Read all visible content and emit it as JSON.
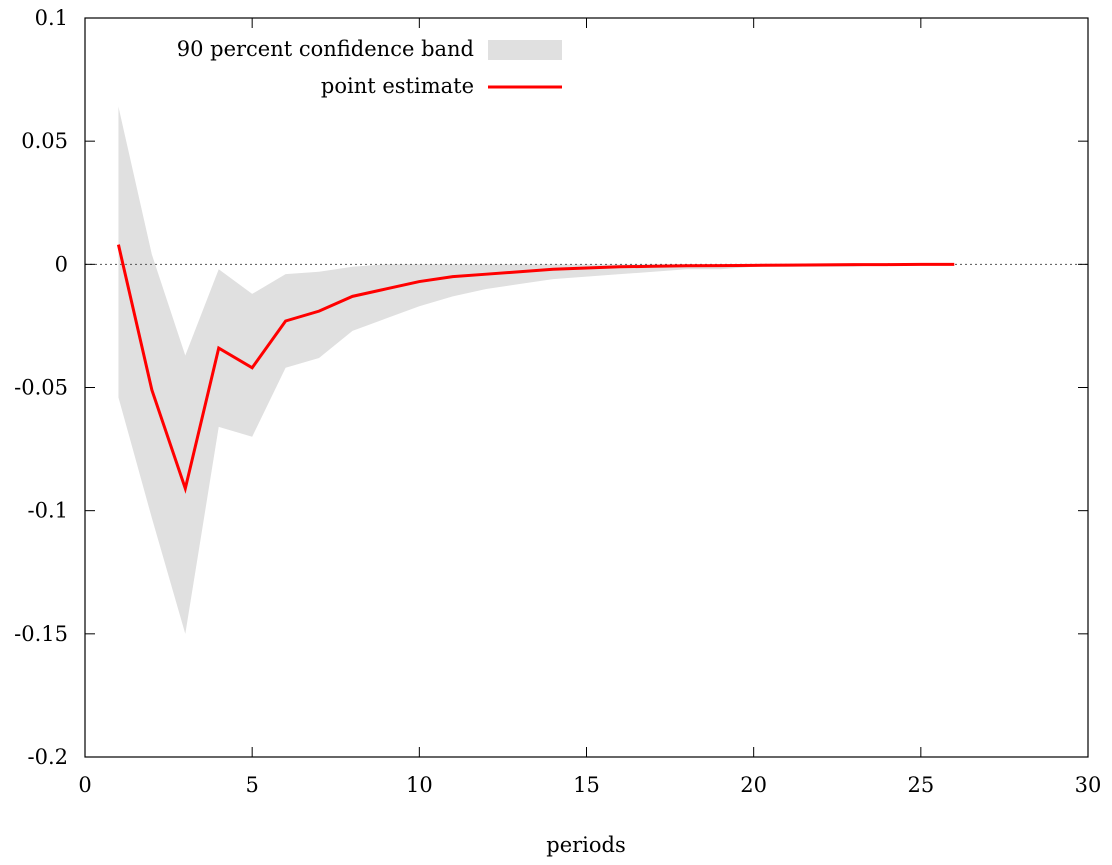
{
  "chart_data": {
    "type": "line",
    "title": "",
    "xlabel": "periods",
    "ylabel": "",
    "xlim": [
      0,
      30
    ],
    "ylim": [
      -0.2,
      0.1
    ],
    "xticks": [
      0,
      5,
      10,
      15,
      20,
      25,
      30
    ],
    "yticks": [
      -0.2,
      -0.15,
      -0.1,
      -0.05,
      0,
      0.05,
      0.1
    ],
    "xtick_labels": [
      "0",
      "5",
      "10",
      "15",
      "20",
      "25",
      "30"
    ],
    "ytick_labels": [
      "-0.2",
      "-0.15",
      "-0.1",
      "-0.05",
      "0",
      "0.05",
      "0.1"
    ],
    "grid": false,
    "legend_position": "top-left",
    "zero_line": true,
    "x": [
      1,
      2,
      3,
      4,
      5,
      6,
      7,
      8,
      9,
      10,
      11,
      12,
      13,
      14,
      15,
      16,
      17,
      18,
      19,
      20,
      21,
      22,
      23,
      24,
      25,
      26
    ],
    "series": [
      {
        "name": "90 percent confidence band",
        "kind": "band",
        "color": "#e0e0e0",
        "lower": [
          -0.054,
          -0.103,
          -0.15,
          -0.066,
          -0.07,
          -0.042,
          -0.038,
          -0.027,
          -0.022,
          -0.017,
          -0.013,
          -0.01,
          -0.008,
          -0.006,
          -0.005,
          -0.004,
          -0.003,
          -0.002,
          -0.002,
          -0.001,
          -0.001,
          -0.001,
          -0.001,
          0.0,
          0.0,
          0.0
        ],
        "upper": [
          0.064,
          0.004,
          -0.037,
          -0.002,
          -0.012,
          -0.004,
          -0.003,
          -0.001,
          0.0,
          0.0,
          0.0,
          0.0,
          0.0,
          0.0,
          0.0,
          0.0,
          0.0,
          0.0,
          0.0,
          0.0,
          0.0,
          0.0,
          0.0,
          0.0,
          0.0,
          0.0
        ]
      },
      {
        "name": "point estimate",
        "kind": "line",
        "color": "#ff0000",
        "values": [
          0.008,
          -0.051,
          -0.091,
          -0.034,
          -0.042,
          -0.023,
          -0.019,
          -0.013,
          -0.01,
          -0.007,
          -0.005,
          -0.004,
          -0.003,
          -0.002,
          -0.0015,
          -0.001,
          -0.0008,
          -0.0006,
          -0.0005,
          -0.0004,
          -0.0003,
          -0.0002,
          -0.0001,
          -0.0001,
          0.0,
          0.0
        ]
      }
    ]
  }
}
